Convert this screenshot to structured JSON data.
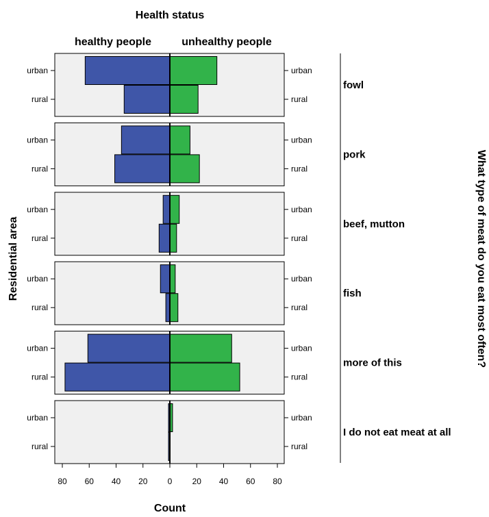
{
  "chart_data": {
    "type": "bar",
    "orientation": "horizontal",
    "layout": "back-to-back",
    "title": "Health status",
    "column_labels": [
      "healthy people",
      "unhealthy people"
    ],
    "ylabel": "Residential area",
    "right_label": "What type of meat do you eat most often?",
    "xlabel": "Count",
    "xlim": [
      -80,
      80
    ],
    "x_ticks": [
      80,
      60,
      40,
      20,
      0,
      20,
      40,
      60,
      80
    ],
    "grid": false,
    "categories": [
      "urban",
      "rural"
    ],
    "colors": {
      "healthy": "#3f56a8",
      "unhealthy": "#32b34a",
      "panel_bg": "#f0f0f0"
    },
    "panels": [
      {
        "group": "fowl",
        "healthy": [
          63,
          34
        ],
        "unhealthy": [
          35,
          21
        ]
      },
      {
        "group": "pork",
        "healthy": [
          36,
          41
        ],
        "unhealthy": [
          15,
          22
        ]
      },
      {
        "group": "beef, mutton",
        "healthy": [
          5,
          8
        ],
        "unhealthy": [
          7,
          5
        ]
      },
      {
        "group": "fish",
        "healthy": [
          7,
          3
        ],
        "unhealthy": [
          4,
          6
        ]
      },
      {
        "group": "more of this",
        "healthy": [
          61,
          78
        ],
        "unhealthy": [
          46,
          52
        ]
      },
      {
        "group": "I do not eat meat at all",
        "healthy": [
          1,
          1
        ],
        "unhealthy": [
          2,
          0
        ]
      }
    ]
  }
}
